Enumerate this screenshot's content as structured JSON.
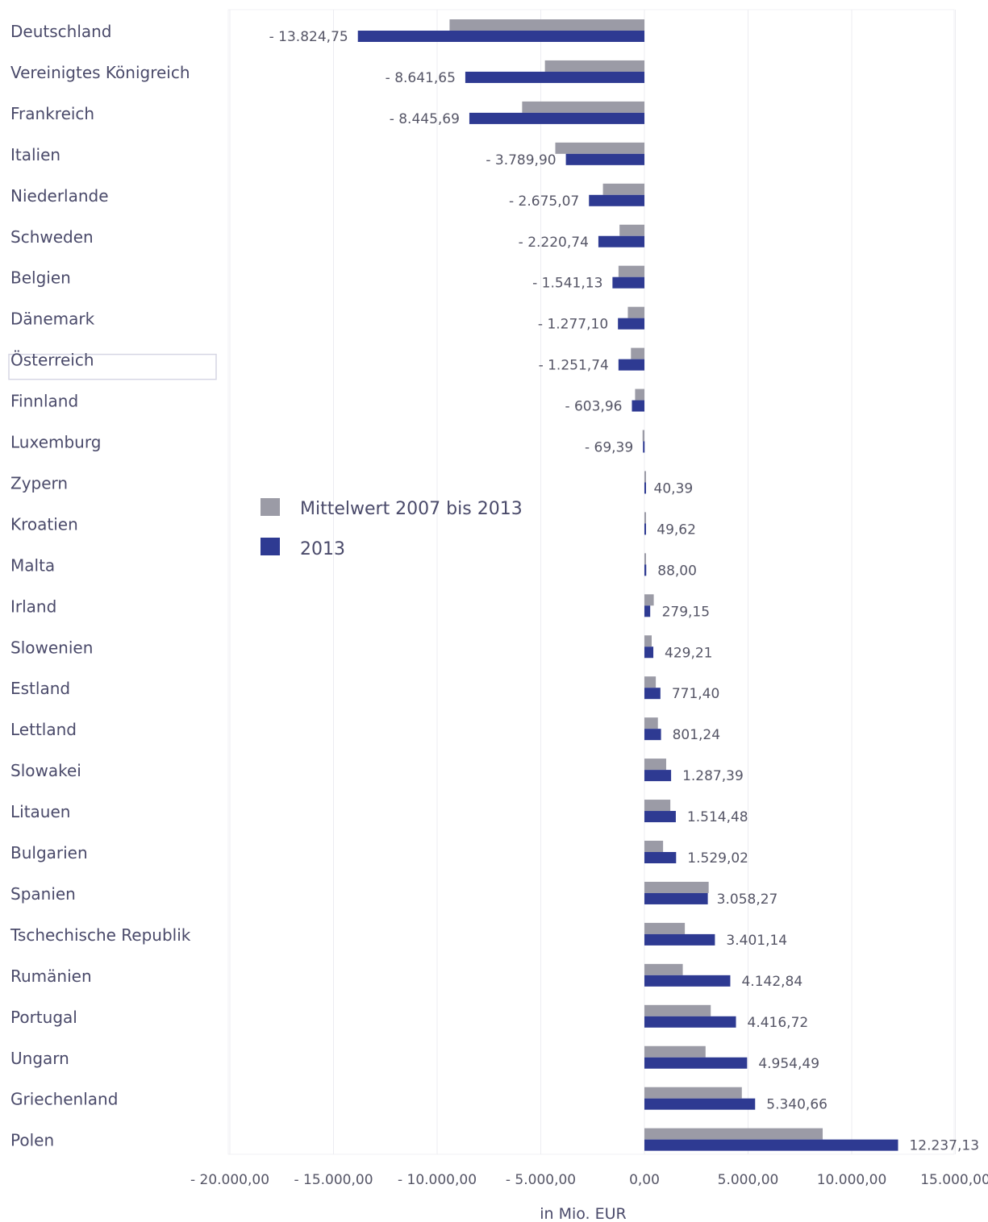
{
  "chart_data": {
    "type": "bar",
    "orientation": "horizontal",
    "xlabel": "in Mio. EUR",
    "xlim": [
      -20000,
      15000
    ],
    "xticks": [
      -20000,
      -15000,
      -10000,
      -5000,
      0,
      5000,
      10000,
      15000
    ],
    "xtick_labels": [
      "- 20.000,00",
      "- 15.000,00",
      "- 10.000,00",
      "- 5.000,00",
      "0,00",
      "5.000,00",
      "10.000,00",
      "15.000,00"
    ],
    "grid": true,
    "legend_position": "middle-left",
    "highlighted_category": "Österreich",
    "categories": [
      "Deutschland",
      "Vereinigtes Königreich",
      "Frankreich",
      "Italien",
      "Niederlande",
      "Schweden",
      "Belgien",
      "Dänemark",
      "Österreich",
      "Finnland",
      "Luxemburg",
      "Zypern",
      "Kroatien",
      "Malta",
      "Irland",
      "Slowenien",
      "Estland",
      "Lettland",
      "Slowakei",
      "Litauen",
      "Bulgarien",
      "Spanien",
      "Tschechische Republik",
      "Rumänien",
      "Portugal",
      "Ungarn",
      "Griechenland",
      "Polen"
    ],
    "series": [
      {
        "name": "Mittelwert 2007 bis 2013",
        "color": "#9b9ba6",
        "values": [
          -9400,
          -4800,
          -5900,
          -4300,
          -2000,
          -1200,
          -1250,
          -800,
          -650,
          -450,
          -90,
          60,
          40,
          60,
          450,
          350,
          550,
          650,
          1050,
          1250,
          900,
          3100,
          1950,
          1850,
          3200,
          2950,
          4700,
          8600
        ]
      },
      {
        "name": "2013",
        "color": "#2e3a92",
        "labels": [
          "- 13.824,75",
          "- 8.641,65",
          "- 8.445,69",
          "- 3.789,90",
          "- 2.675,07",
          "- 2.220,74",
          "- 1.541,13",
          "- 1.277,10",
          "- 1.251,74",
          "- 603,96",
          "- 69,39",
          "40,39",
          "49,62",
          "88,00",
          "279,15",
          "429,21",
          "771,40",
          "801,24",
          "1.287,39",
          "1.514,48",
          "1.529,02",
          "3.058,27",
          "3.401,14",
          "4.142,84",
          "4.416,72",
          "4.954,49",
          "5.340,66",
          "12.237,13"
        ],
        "values": [
          -13824.75,
          -8641.65,
          -8445.69,
          -3789.9,
          -2675.07,
          -2220.74,
          -1541.13,
          -1277.1,
          -1251.74,
          -603.96,
          -69.39,
          40.39,
          49.62,
          88.0,
          279.15,
          429.21,
          771.4,
          801.24,
          1287.39,
          1514.48,
          1529.02,
          3058.27,
          3401.14,
          4142.84,
          4416.72,
          4954.49,
          5340.66,
          12237.13
        ]
      }
    ]
  }
}
